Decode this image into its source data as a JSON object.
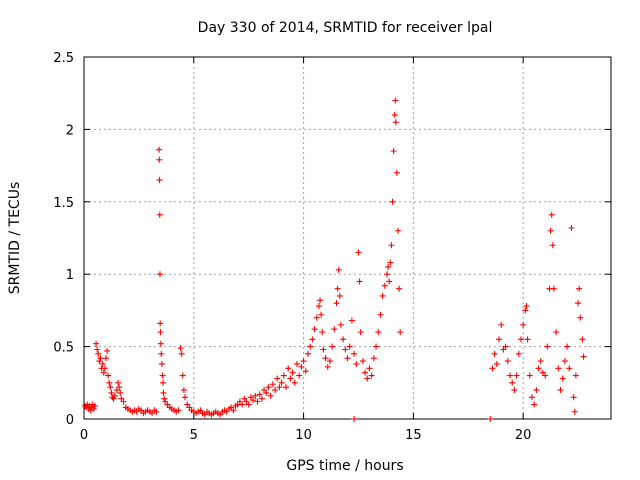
{
  "chart_data": {
    "type": "scatter",
    "title": "Day 330 of 2014, SRMTID for receiver lpal",
    "xlabel": "GPS time / hours",
    "ylabel": "SRMTID / TECUs",
    "xlim": [
      0,
      24
    ],
    "ylim": [
      0,
      2.5
    ],
    "x_ticks": [
      0,
      5,
      10,
      15,
      20
    ],
    "x_tick_labels": [
      "0",
      "5",
      "10",
      "15",
      "20"
    ],
    "y_ticks": [
      0,
      0.5,
      1,
      1.5,
      2,
      2.5
    ],
    "y_tick_labels": [
      "0",
      "0.5",
      "1",
      "1.5",
      "2",
      "2.5"
    ],
    "grid": true,
    "marker": "+",
    "series": [
      {
        "name": "SRMTID",
        "color": "#ff0000",
        "points": [
          [
            0.05,
            0.09
          ],
          [
            0.1,
            0.08
          ],
          [
            0.15,
            0.1
          ],
          [
            0.2,
            0.07
          ],
          [
            0.25,
            0.09
          ],
          [
            0.3,
            0.06
          ],
          [
            0.35,
            0.08
          ],
          [
            0.4,
            0.1
          ],
          [
            0.45,
            0.07
          ],
          [
            0.5,
            0.09
          ],
          [
            0.55,
            0.52
          ],
          [
            0.6,
            0.48
          ],
          [
            0.65,
            0.45
          ],
          [
            0.7,
            0.4
          ],
          [
            0.75,
            0.42
          ],
          [
            0.8,
            0.35
          ],
          [
            0.85,
            0.38
          ],
          [
            0.9,
            0.32
          ],
          [
            0.95,
            0.35
          ],
          [
            1.0,
            0.42
          ],
          [
            1.05,
            0.47
          ],
          [
            1.1,
            0.3
          ],
          [
            1.15,
            0.25
          ],
          [
            1.2,
            0.22
          ],
          [
            1.25,
            0.18
          ],
          [
            1.3,
            0.15
          ],
          [
            1.35,
            0.14
          ],
          [
            1.4,
            0.16
          ],
          [
            1.5,
            0.2
          ],
          [
            1.55,
            0.25
          ],
          [
            1.6,
            0.22
          ],
          [
            1.65,
            0.18
          ],
          [
            1.7,
            0.14
          ],
          [
            1.8,
            0.12
          ],
          [
            1.9,
            0.08
          ],
          [
            2.0,
            0.07
          ],
          [
            2.1,
            0.06
          ],
          [
            2.2,
            0.05
          ],
          [
            2.3,
            0.06
          ],
          [
            2.4,
            0.05
          ],
          [
            2.5,
            0.07
          ],
          [
            2.6,
            0.06
          ],
          [
            2.7,
            0.04
          ],
          [
            2.8,
            0.05
          ],
          [
            2.9,
            0.06
          ],
          [
            3.0,
            0.05
          ],
          [
            3.1,
            0.04
          ],
          [
            3.2,
            0.06
          ],
          [
            3.3,
            0.05
          ],
          [
            3.42,
            1.86
          ],
          [
            3.43,
            1.79
          ],
          [
            3.44,
            1.65
          ],
          [
            3.45,
            1.41
          ],
          [
            3.46,
            1.0
          ],
          [
            3.47,
            0.66
          ],
          [
            3.48,
            0.6
          ],
          [
            3.5,
            0.52
          ],
          [
            3.52,
            0.45
          ],
          [
            3.55,
            0.38
          ],
          [
            3.58,
            0.3
          ],
          [
            3.6,
            0.25
          ],
          [
            3.62,
            0.18
          ],
          [
            3.65,
            0.14
          ],
          [
            3.7,
            0.12
          ],
          [
            3.8,
            0.1
          ],
          [
            3.9,
            0.08
          ],
          [
            4.0,
            0.07
          ],
          [
            4.1,
            0.06
          ],
          [
            4.2,
            0.05
          ],
          [
            4.3,
            0.06
          ],
          [
            4.4,
            0.49
          ],
          [
            4.45,
            0.45
          ],
          [
            4.5,
            0.3
          ],
          [
            4.55,
            0.2
          ],
          [
            4.6,
            0.15
          ],
          [
            4.7,
            0.1
          ],
          [
            4.8,
            0.08
          ],
          [
            4.9,
            0.06
          ],
          [
            5.0,
            0.05
          ],
          [
            5.1,
            0.04
          ],
          [
            5.2,
            0.05
          ],
          [
            5.3,
            0.06
          ],
          [
            5.4,
            0.04
          ],
          [
            5.5,
            0.03
          ],
          [
            5.6,
            0.05
          ],
          [
            5.7,
            0.04
          ],
          [
            5.8,
            0.03
          ],
          [
            5.9,
            0.04
          ],
          [
            6.0,
            0.05
          ],
          [
            6.1,
            0.04
          ],
          [
            6.2,
            0.03
          ],
          [
            6.3,
            0.05
          ],
          [
            6.4,
            0.06
          ],
          [
            6.5,
            0.05
          ],
          [
            6.6,
            0.07
          ],
          [
            6.7,
            0.08
          ],
          [
            6.8,
            0.06
          ],
          [
            6.9,
            0.09
          ],
          [
            7.0,
            0.1
          ],
          [
            7.1,
            0.12
          ],
          [
            7.2,
            0.1
          ],
          [
            7.3,
            0.14
          ],
          [
            7.4,
            0.12
          ],
          [
            7.5,
            0.1
          ],
          [
            7.6,
            0.15
          ],
          [
            7.7,
            0.13
          ],
          [
            7.8,
            0.16
          ],
          [
            7.9,
            0.12
          ],
          [
            8.0,
            0.17
          ],
          [
            8.1,
            0.14
          ],
          [
            8.2,
            0.2
          ],
          [
            8.3,
            0.18
          ],
          [
            8.4,
            0.22
          ],
          [
            8.5,
            0.16
          ],
          [
            8.6,
            0.24
          ],
          [
            8.7,
            0.2
          ],
          [
            8.8,
            0.28
          ],
          [
            8.9,
            0.22
          ],
          [
            9.0,
            0.25
          ],
          [
            9.1,
            0.3
          ],
          [
            9.2,
            0.22
          ],
          [
            9.3,
            0.35
          ],
          [
            9.4,
            0.28
          ],
          [
            9.5,
            0.32
          ],
          [
            9.6,
            0.25
          ],
          [
            9.7,
            0.38
          ],
          [
            9.8,
            0.3
          ],
          [
            9.9,
            0.36
          ],
          [
            10.0,
            0.4
          ],
          [
            10.1,
            0.33
          ],
          [
            10.2,
            0.45
          ],
          [
            10.3,
            0.5
          ],
          [
            10.4,
            0.55
          ],
          [
            10.5,
            0.62
          ],
          [
            10.6,
            0.7
          ],
          [
            10.7,
            0.78
          ],
          [
            10.75,
            0.82
          ],
          [
            10.8,
            0.72
          ],
          [
            10.85,
            0.6
          ],
          [
            10.9,
            0.48
          ],
          [
            11.0,
            0.42
          ],
          [
            11.1,
            0.36
          ],
          [
            11.2,
            0.4
          ],
          [
            11.3,
            0.5
          ],
          [
            11.4,
            0.62
          ],
          [
            11.5,
            0.8
          ],
          [
            11.55,
            0.9
          ],
          [
            11.6,
            1.03
          ],
          [
            11.65,
            0.85
          ],
          [
            11.7,
            0.65
          ],
          [
            11.8,
            0.55
          ],
          [
            11.9,
            0.48
          ],
          [
            12.0,
            0.42
          ],
          [
            12.1,
            0.5
          ],
          [
            12.2,
            0.68
          ],
          [
            12.3,
            0.45
          ],
          [
            12.4,
            0.38
          ],
          [
            12.5,
            1.15
          ],
          [
            12.55,
            0.95
          ],
          [
            12.6,
            0.6
          ],
          [
            12.7,
            0.4
          ],
          [
            12.8,
            0.32
          ],
          [
            12.9,
            0.28
          ],
          [
            13.0,
            0.35
          ],
          [
            13.1,
            0.3
          ],
          [
            13.2,
            0.42
          ],
          [
            13.3,
            0.5
          ],
          [
            13.4,
            0.6
          ],
          [
            13.5,
            0.72
          ],
          [
            13.6,
            0.85
          ],
          [
            13.7,
            0.92
          ],
          [
            13.8,
            1.0
          ],
          [
            13.85,
            1.05
          ],
          [
            13.9,
            0.95
          ],
          [
            13.95,
            1.08
          ],
          [
            14.0,
            1.2
          ],
          [
            14.05,
            1.5
          ],
          [
            14.1,
            1.85
          ],
          [
            14.15,
            2.1
          ],
          [
            14.18,
            2.2
          ],
          [
            14.2,
            2.05
          ],
          [
            14.25,
            1.7
          ],
          [
            14.3,
            1.3
          ],
          [
            14.35,
            0.9
          ],
          [
            14.4,
            0.6
          ],
          [
            12.3,
            0.0
          ],
          [
            18.5,
            0.0
          ],
          [
            18.6,
            0.35
          ],
          [
            18.7,
            0.45
          ],
          [
            18.8,
            0.38
          ],
          [
            18.9,
            0.55
          ],
          [
            19.0,
            0.65
          ],
          [
            19.1,
            0.48
          ],
          [
            19.2,
            0.5
          ],
          [
            19.3,
            0.4
          ],
          [
            19.4,
            0.3
          ],
          [
            19.5,
            0.25
          ],
          [
            19.6,
            0.2
          ],
          [
            19.7,
            0.3
          ],
          [
            19.8,
            0.45
          ],
          [
            19.9,
            0.55
          ],
          [
            20.0,
            0.65
          ],
          [
            20.1,
            0.75
          ],
          [
            20.15,
            0.78
          ],
          [
            20.2,
            0.55
          ],
          [
            20.3,
            0.3
          ],
          [
            20.4,
            0.15
          ],
          [
            20.5,
            0.1
          ],
          [
            20.6,
            0.2
          ],
          [
            20.7,
            0.35
          ],
          [
            20.8,
            0.4
          ],
          [
            20.9,
            0.32
          ],
          [
            21.0,
            0.3
          ],
          [
            21.1,
            0.5
          ],
          [
            21.2,
            0.9
          ],
          [
            21.25,
            1.3
          ],
          [
            21.3,
            1.41
          ],
          [
            21.35,
            1.2
          ],
          [
            21.4,
            0.9
          ],
          [
            21.5,
            0.6
          ],
          [
            21.6,
            0.35
          ],
          [
            21.7,
            0.2
          ],
          [
            21.8,
            0.28
          ],
          [
            21.9,
            0.4
          ],
          [
            22.0,
            0.5
          ],
          [
            22.1,
            0.35
          ],
          [
            22.2,
            1.32
          ],
          [
            22.3,
            0.15
          ],
          [
            22.35,
            0.05
          ],
          [
            22.4,
            0.3
          ],
          [
            22.5,
            0.8
          ],
          [
            22.55,
            0.9
          ],
          [
            22.6,
            0.7
          ],
          [
            22.7,
            0.55
          ],
          [
            22.75,
            0.43
          ]
        ]
      }
    ]
  }
}
